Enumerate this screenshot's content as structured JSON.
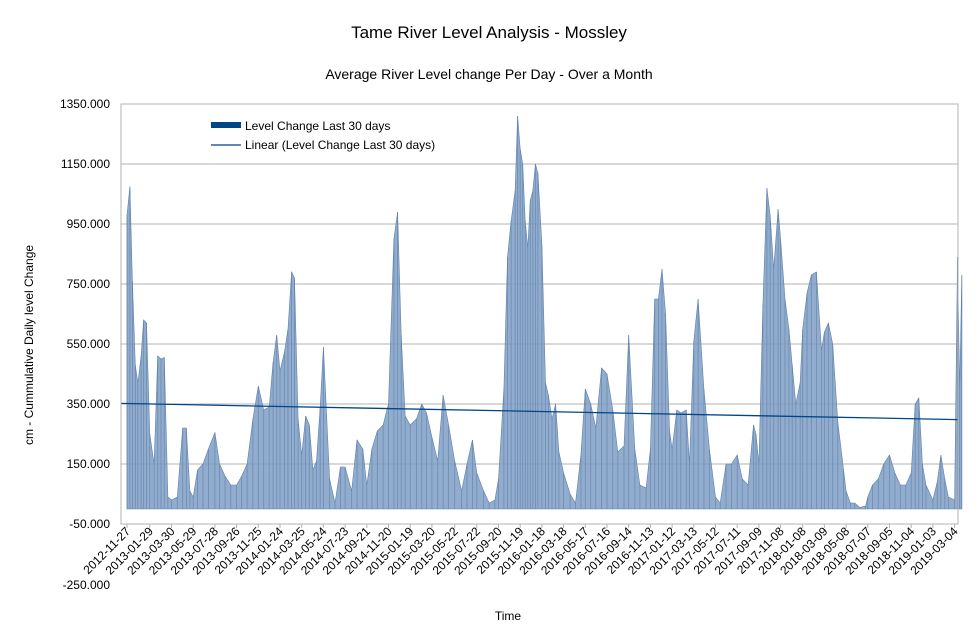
{
  "chart_data": {
    "type": "area",
    "title": "Tame River Level Analysis - Mossley",
    "subtitle": "Average River Level change Per Day -  Over a Month",
    "xlabel": "Time",
    "ylabel": "cm - Cummulative Daily level Change",
    "ylim": [
      -250,
      1350
    ],
    "plot_ylim": [
      -50,
      1350
    ],
    "yticks": [
      "1350.000",
      "1150.000",
      "950.000",
      "750.000",
      "550.000",
      "350.000",
      "150.000",
      "-50.000",
      "-250.000"
    ],
    "ytick_values": [
      1350,
      1150,
      950,
      750,
      550,
      350,
      150,
      -50,
      -250
    ],
    "grid": "horizontal",
    "legend_position": "top-left",
    "colors": {
      "series": "#7e9ec4",
      "trend": "#004586",
      "grid": "#b3b3b3"
    },
    "series": [
      {
        "name": "Level Change Last 30 days",
        "type": "area",
        "x": [
          "2012-11-27",
          "2012-12-05",
          "2012-12-12",
          "2012-12-20",
          "2012-12-27",
          "2013-01-05",
          "2013-01-12",
          "2013-01-20",
          "2013-01-29",
          "2013-02-10",
          "2013-02-20",
          "2013-03-01",
          "2013-03-10",
          "2013-03-20",
          "2013-03-30",
          "2013-04-15",
          "2013-04-30",
          "2013-05-10",
          "2013-05-20",
          "2013-05-29",
          "2013-06-10",
          "2013-06-25",
          "2013-07-10",
          "2013-07-28",
          "2013-08-10",
          "2013-08-25",
          "2013-09-10",
          "2013-09-26",
          "2013-10-10",
          "2013-10-25",
          "2013-11-10",
          "2013-11-25",
          "2013-12-10",
          "2013-12-25",
          "2014-01-05",
          "2014-01-15",
          "2014-01-24",
          "2014-02-05",
          "2014-02-15",
          "2014-02-25",
          "2014-03-05",
          "2014-03-15",
          "2014-03-25",
          "2014-04-05",
          "2014-04-15",
          "2014-04-25",
          "2014-05-05",
          "2014-05-15",
          "2014-05-24",
          "2014-06-10",
          "2014-06-25",
          "2014-07-10",
          "2014-07-23",
          "2014-08-10",
          "2014-08-25",
          "2014-09-10",
          "2014-09-21",
          "2014-10-05",
          "2014-10-20",
          "2014-11-05",
          "2014-11-20",
          "2014-12-05",
          "2014-12-15",
          "2014-12-25",
          "2015-01-05",
          "2015-01-19",
          "2015-02-05",
          "2015-02-20",
          "2015-03-05",
          "2015-03-20",
          "2015-04-05",
          "2015-04-20",
          "2015-05-05",
          "2015-05-22",
          "2015-06-10",
          "2015-06-25",
          "2015-07-10",
          "2015-07-22",
          "2015-08-10",
          "2015-08-25",
          "2015-09-10",
          "2015-09-20",
          "2015-10-05",
          "2015-10-15",
          "2015-10-25",
          "2015-11-05",
          "2015-11-12",
          "2015-11-19",
          "2015-11-26",
          "2015-12-03",
          "2015-12-10",
          "2015-12-17",
          "2015-12-24",
          "2015-12-31",
          "2016-01-07",
          "2016-01-18",
          "2016-01-28",
          "2016-02-05",
          "2016-02-15",
          "2016-02-25",
          "2016-03-05",
          "2016-03-18",
          "2016-04-05",
          "2016-04-20",
          "2016-05-05",
          "2016-05-17",
          "2016-06-01",
          "2016-06-15",
          "2016-07-01",
          "2016-07-16",
          "2016-08-01",
          "2016-08-15",
          "2016-09-01",
          "2016-09-14",
          "2016-10-01",
          "2016-10-15",
          "2016-11-01",
          "2016-11-13",
          "2016-11-25",
          "2016-12-05",
          "2016-12-15",
          "2016-12-25",
          "2017-01-05",
          "2017-01-12",
          "2017-01-25",
          "2017-02-05",
          "2017-02-20",
          "2017-03-01",
          "2017-03-13",
          "2017-03-25",
          "2017-04-10",
          "2017-04-25",
          "2017-05-12",
          "2017-05-25",
          "2017-06-10",
          "2017-06-25",
          "2017-07-11",
          "2017-07-25",
          "2017-08-10",
          "2017-08-25",
          "2017-09-01",
          "2017-09-09",
          "2017-09-20",
          "2017-10-01",
          "2017-10-10",
          "2017-10-20",
          "2017-11-01",
          "2017-11-08",
          "2017-11-20",
          "2017-12-01",
          "2017-12-10",
          "2017-12-20",
          "2018-01-01",
          "2018-01-08",
          "2018-01-20",
          "2018-02-01",
          "2018-02-15",
          "2018-03-01",
          "2018-03-09",
          "2018-03-20",
          "2018-04-01",
          "2018-04-15",
          "2018-05-01",
          "2018-05-08",
          "2018-05-20",
          "2018-06-01",
          "2018-06-15",
          "2018-07-01",
          "2018-07-07",
          "2018-07-20",
          "2018-08-05",
          "2018-08-20",
          "2018-09-05",
          "2018-09-20",
          "2018-10-05",
          "2018-10-20",
          "2018-11-04",
          "2018-11-15",
          "2018-11-25",
          "2018-12-05",
          "2018-12-15",
          "2019-01-03",
          "2019-01-15",
          "2019-01-25",
          "2019-02-05",
          "2019-02-15",
          "2019-03-04",
          "2019-03-12",
          "2019-03-18",
          "2019-03-24"
        ],
        "values": [
          980,
          1075,
          760,
          480,
          420,
          510,
          630,
          620,
          250,
          150,
          510,
          500,
          505,
          40,
          30,
          40,
          270,
          270,
          60,
          40,
          130,
          150,
          200,
          255,
          150,
          110,
          80,
          80,
          110,
          150,
          300,
          410,
          330,
          340,
          490,
          580,
          460,
          520,
          600,
          790,
          770,
          300,
          180,
          310,
          280,
          130,
          160,
          340,
          540,
          100,
          20,
          140,
          140,
          60,
          230,
          200,
          80,
          200,
          260,
          280,
          350,
          900,
          990,
          580,
          310,
          280,
          300,
          350,
          320,
          240,
          160,
          380,
          280,
          160,
          60,
          150,
          230,
          120,
          60,
          20,
          30,
          100,
          400,
          840,
          960,
          1060,
          1310,
          1200,
          1150,
          960,
          870,
          1030,
          1060,
          1150,
          1120,
          880,
          420,
          380,
          300,
          350,
          190,
          120,
          50,
          20,
          180,
          400,
          350,
          270,
          470,
          450,
          330,
          190,
          210,
          580,
          200,
          80,
          70,
          200,
          700,
          700,
          800,
          650,
          260,
          200,
          330,
          320,
          330,
          150,
          560,
          700,
          400,
          200,
          40,
          20,
          150,
          150,
          180,
          100,
          80,
          280,
          250,
          150,
          680,
          1070,
          980,
          800,
          1000,
          900,
          700,
          600,
          480,
          350,
          420,
          600,
          720,
          780,
          790,
          530,
          590,
          620,
          550,
          290,
          130,
          60,
          20,
          20,
          5,
          10,
          40,
          80,
          100,
          150,
          180,
          120,
          80,
          80,
          120,
          350,
          370,
          150,
          80,
          30,
          90,
          180,
          100,
          40,
          30,
          840,
          400,
          780
        ]
      },
      {
        "name": "Linear (Level Change Last 30 days)",
        "type": "line",
        "x": [
          "2012-11-27",
          "2019-03-24"
        ],
        "values": [
          352,
          298
        ]
      }
    ],
    "xticks": [
      "2012-11-27",
      "2013-01-29",
      "2013-03-30",
      "2013-05-29",
      "2013-07-28",
      "2013-09-26",
      "2013-11-25",
      "2014-01-24",
      "2014-03-25",
      "2014-05-24",
      "2014-07-23",
      "2014-09-21",
      "2014-11-20",
      "2015-01-19",
      "2015-03-20",
      "2015-05-22",
      "2015-07-22",
      "2015-09-20",
      "2015-11-19",
      "2016-01-18",
      "2016-03-18",
      "2016-05-17",
      "2016-07-16",
      "2016-09-14",
      "2016-11-13",
      "2017-01-12",
      "2017-03-13",
      "2017-05-12",
      "2017-07-11",
      "2017-09-09",
      "2017-11-08",
      "2018-01-08",
      "2018-03-09",
      "2018-05-08",
      "2018-07-07",
      "2018-09-05",
      "2018-11-04",
      "2019-01-03",
      "2019-03-04"
    ]
  }
}
